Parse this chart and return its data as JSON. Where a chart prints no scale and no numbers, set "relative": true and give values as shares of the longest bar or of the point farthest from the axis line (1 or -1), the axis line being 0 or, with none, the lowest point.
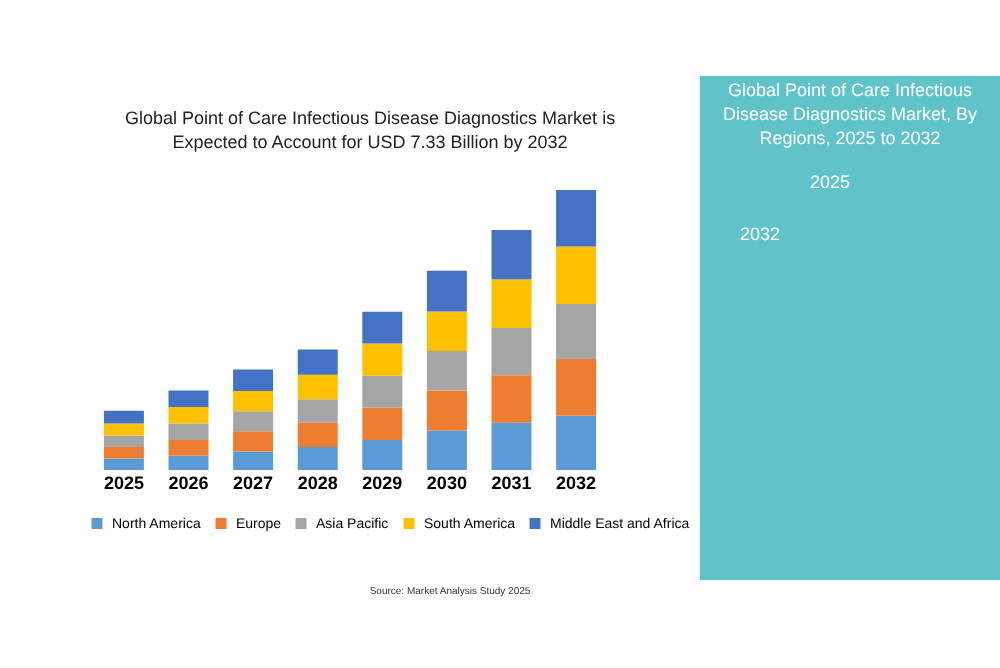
{
  "chart_data": {
    "type": "bar",
    "title": "Global Point of Care Infectious Disease Diagnostics Market is Expected to Account for USD 7.33 Billion by 2032",
    "categories": [
      "2025",
      "2026",
      "2027",
      "2028",
      "2029",
      "2030",
      "2031",
      "2032"
    ],
    "stacked": true,
    "relative": true,
    "legend": "bottom",
    "grid": false,
    "series": [
      {
        "name": "North America",
        "color": "#5b9bd5",
        "values": [
          0.041,
          0.051,
          0.066,
          0.082,
          0.107,
          0.141,
          0.169,
          0.194
        ]
      },
      {
        "name": "Europe",
        "color": "#ed7d31",
        "values": [
          0.041,
          0.056,
          0.072,
          0.087,
          0.115,
          0.143,
          0.169,
          0.202
        ]
      },
      {
        "name": "Asia Pacific",
        "color": "#a5a5a5",
        "values": [
          0.041,
          0.059,
          0.072,
          0.084,
          0.115,
          0.141,
          0.169,
          0.197
        ]
      },
      {
        "name": "South America",
        "color": "#ffc000",
        "values": [
          0.043,
          0.059,
          0.072,
          0.087,
          0.115,
          0.141,
          0.174,
          0.205
        ]
      },
      {
        "name": "Middle East and Africa",
        "color": "#4472c4",
        "values": [
          0.046,
          0.059,
          0.077,
          0.09,
          0.113,
          0.146,
          0.176,
          0.202
        ]
      }
    ],
    "annotations": [
      "Global Point of Care Infectious Disease Diagnostics Market, By Regions, 2025 to 2032",
      "2032",
      "2025",
      "Source: Market Analysis Study 2025"
    ]
  }
}
